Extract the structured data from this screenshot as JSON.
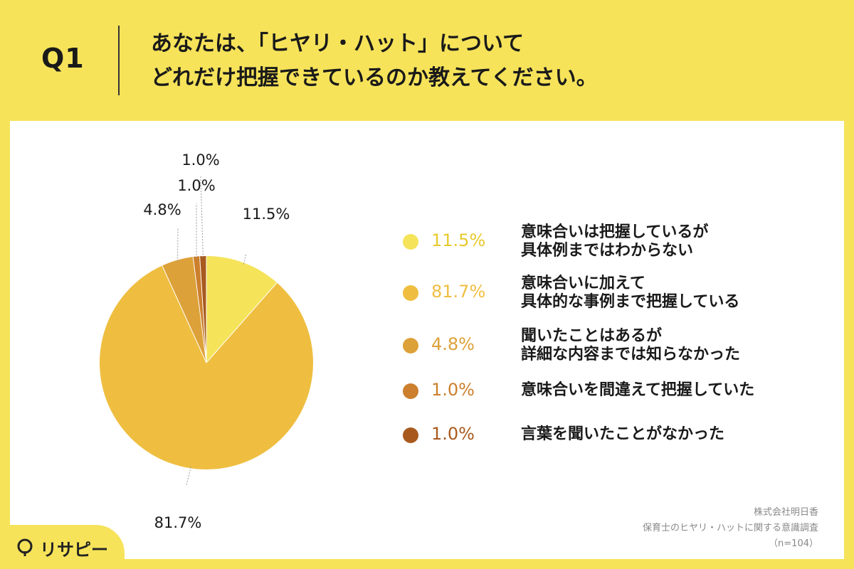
{
  "header": {
    "q_label": "Q1",
    "title_line1": "あなたは、「ヒヤリ・ハット」について",
    "title_line2": "どれだけ把握できているのか教えてください。"
  },
  "chart_data": {
    "type": "pie",
    "title": "",
    "slices": [
      {
        "label": "意味合いは把握しているが\n具体例まではわからない",
        "value": 11.5,
        "value_label": "11.5%",
        "color": "#f5e35a"
      },
      {
        "label": "意味合いに加えて\n具体的な事例まで把握している",
        "value": 81.7,
        "value_label": "81.7%",
        "color": "#efbe40"
      },
      {
        "label": "聞いたことはあるが\n詳細な内容までは知らなかった",
        "value": 4.8,
        "value_label": "4.8%",
        "color": "#dda13a"
      },
      {
        "label": "意味合いを間違えて把握していた",
        "value": 1.0,
        "value_label": "1.0%",
        "color": "#cc7f2c"
      },
      {
        "label": "言葉を聞いたことがなかった",
        "value": 1.0,
        "value_label": "1.0%",
        "color": "#a85a1e"
      }
    ],
    "legend_position": "right"
  },
  "source": {
    "company": "株式会社明日香",
    "survey": "保育士のヒヤリ・ハットに関する意識調査",
    "sample": "（n=104）"
  },
  "logo": {
    "text": "リサピー",
    "mark_icon": "lens-icon"
  }
}
